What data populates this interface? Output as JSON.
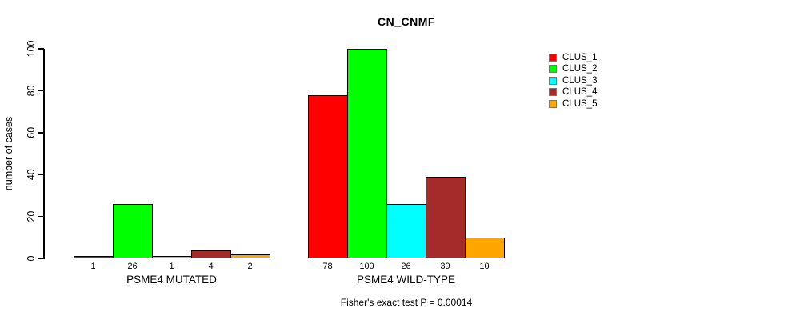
{
  "chart_data": {
    "type": "bar",
    "title": "CN_CNMF",
    "ylabel": "number of cases",
    "ylim": [
      0,
      100
    ],
    "yticks": [
      0,
      20,
      40,
      60,
      80,
      100
    ],
    "grid": false,
    "legend_position": "right",
    "categories": [
      "PSME4 MUTATED",
      "PSME4 WILD-TYPE"
    ],
    "series": [
      {
        "name": "CLUS_1",
        "color": "#ff0000",
        "values": [
          1,
          78
        ]
      },
      {
        "name": "CLUS_2",
        "color": "#00ff00",
        "values": [
          26,
          100
        ]
      },
      {
        "name": "CLUS_3",
        "color": "#00ffff",
        "values": [
          1,
          26
        ]
      },
      {
        "name": "CLUS_4",
        "color": "#a52a2a",
        "values": [
          4,
          39
        ]
      },
      {
        "name": "CLUS_5",
        "color": "#ffa500",
        "values": [
          2,
          10
        ]
      }
    ],
    "footnote": "Fisher's exact test P = 0.00014"
  }
}
